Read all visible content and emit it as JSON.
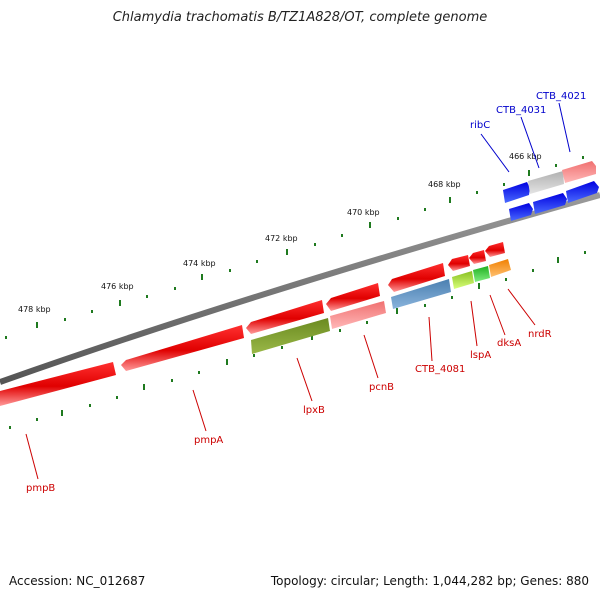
{
  "title": "Chlamydia trachomatis B/TZ1A828/OT, complete genome",
  "footer": {
    "accession": "Accession: NC_012687",
    "topology": "Topology: circular; Length: 1,044,282 bp; Genes: 880"
  },
  "colors": {
    "backbone": "#7a7a7a",
    "tick": "#1f7a1f",
    "forward_label": "#0000cc",
    "reverse_label": "#cc0000"
  },
  "scale_labels": [
    {
      "text": "466 kbp",
      "kbp": 466
    },
    {
      "text": "468 kbp",
      "kbp": 468
    },
    {
      "text": "470 kbp",
      "kbp": 470
    },
    {
      "text": "472 kbp",
      "kbp": 472
    },
    {
      "text": "474 kbp",
      "kbp": 474
    },
    {
      "text": "476 kbp",
      "kbp": 476
    },
    {
      "text": "478 kbp",
      "kbp": 478
    }
  ],
  "forward_labels": [
    {
      "text": "ribC"
    },
    {
      "text": "CTB_4031"
    },
    {
      "text": "CTB_4021"
    }
  ],
  "reverse_labels": [
    {
      "text": "pmpB"
    },
    {
      "text": "pmpA"
    },
    {
      "text": "lpxB"
    },
    {
      "text": "pcnB"
    },
    {
      "text": "CTB_4081"
    },
    {
      "text": "lspA"
    },
    {
      "text": "dksA"
    },
    {
      "text": "nrdR"
    }
  ]
}
